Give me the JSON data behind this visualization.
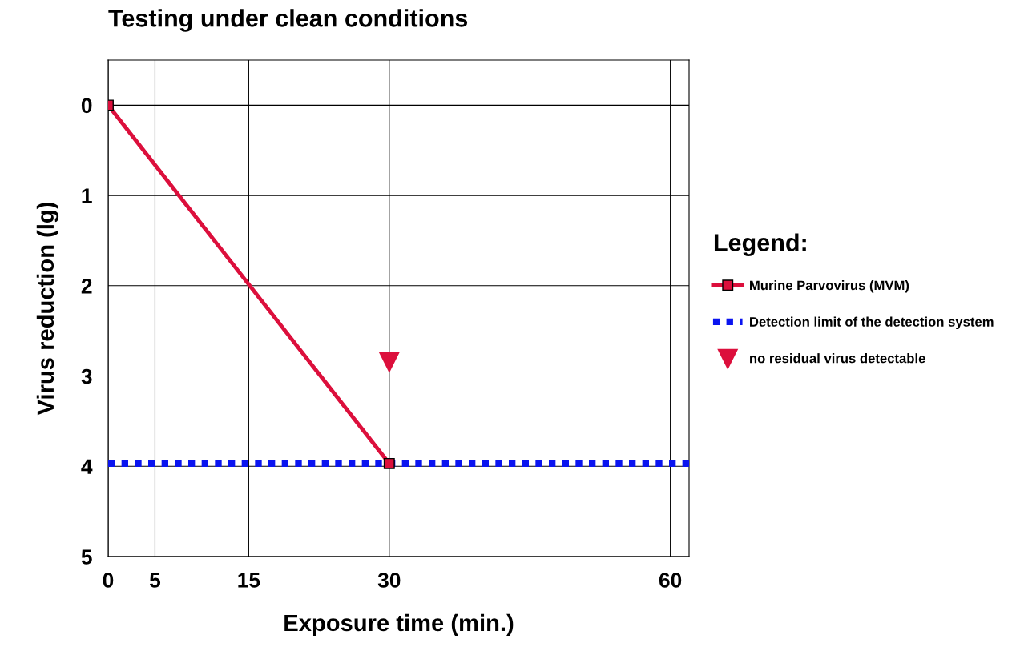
{
  "chart_data": {
    "type": "line",
    "title": "Testing under clean conditions",
    "xlabel": "Exposure time (min.)",
    "ylabel": "Virus reduction (lg)",
    "legend_title": "Legend:",
    "xlim": [
      0,
      62
    ],
    "xticks": [
      0,
      5,
      15,
      30,
      60
    ],
    "ylim": [
      5,
      -0.5
    ],
    "yticks": [
      0,
      1,
      2,
      3,
      4,
      5
    ],
    "grid": true,
    "legend": "right",
    "series": [
      {
        "name": "Murine Parvovirus (MVM)",
        "color": "#dc0f3c",
        "x": [
          0,
          30
        ],
        "values": [
          0,
          3.97
        ],
        "marker": "square",
        "line_style": "solid"
      },
      {
        "name": "Detection limit of the detection system",
        "color": "#0a14f0",
        "x": [
          0,
          62
        ],
        "values": [
          3.97,
          3.97
        ],
        "marker": "none",
        "line_style": "dotted"
      },
      {
        "name": "no residual virus detectable",
        "type": "scatter",
        "color": "#dc0f3c",
        "x": [
          30
        ],
        "values": [
          2.85
        ],
        "marker": "triangle_down"
      }
    ]
  }
}
